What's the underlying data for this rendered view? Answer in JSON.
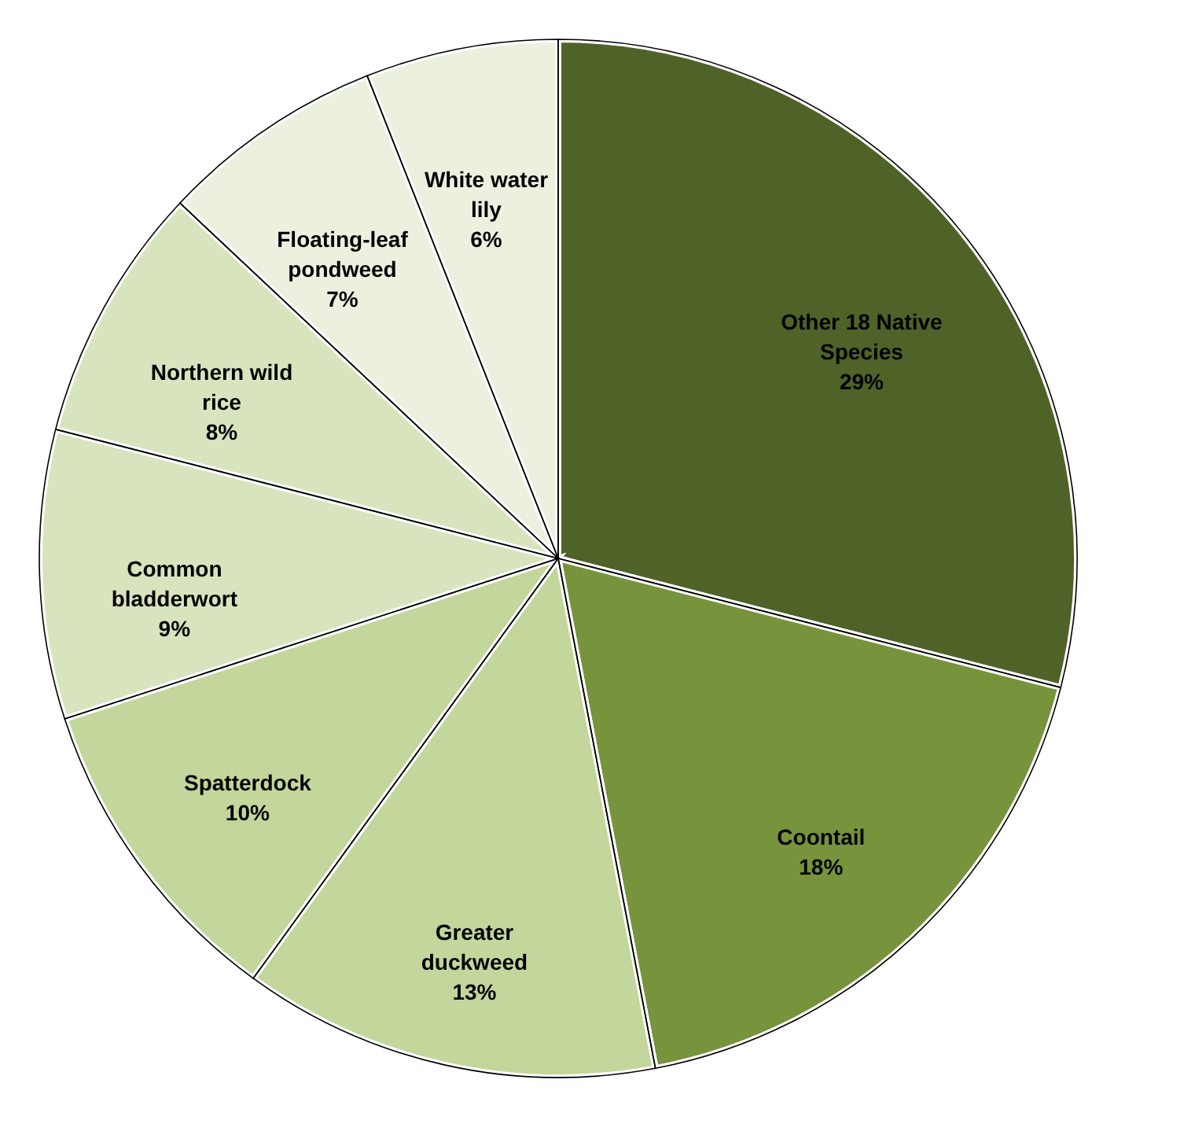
{
  "chart_data": {
    "type": "pie",
    "categories": [
      "Other 18 Native Species",
      "Coontail",
      "Greater duckweed",
      "Spatterdock",
      "Common bladderwort",
      "Northern wild rice",
      "Floating-leaf pondweed",
      "White water lily"
    ],
    "values": [
      29,
      18,
      13,
      10,
      9,
      8,
      7,
      6
    ],
    "value_labels": [
      "29%",
      "18%",
      "13%",
      "10%",
      "9%",
      "8%",
      "7%",
      "6%"
    ],
    "colors": [
      "#4f6228",
      "#77933c",
      "#c3d69b",
      "#c3d69b",
      "#d7e4bd",
      "#d7e4bd",
      "#ebf1de",
      "#ebf1de"
    ],
    "legend": false
  }
}
